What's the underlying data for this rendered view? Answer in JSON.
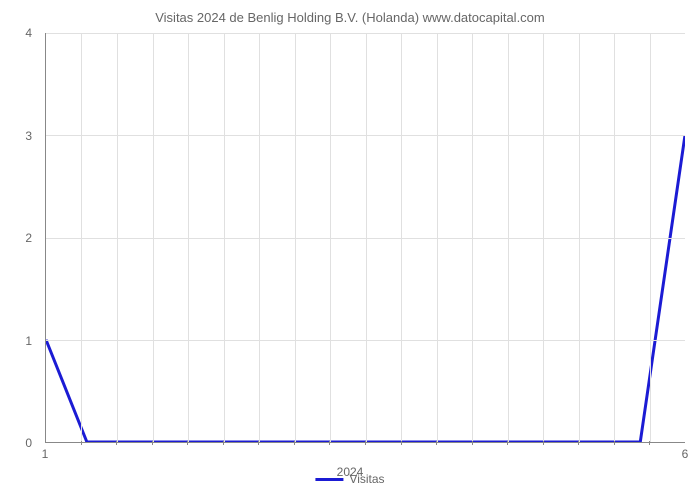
{
  "chart": {
    "type": "line",
    "title": "Visitas 2024 de Benlig Holding B.V. (Holanda) www.datocapital.com",
    "title_fontsize": 13,
    "title_color": "#666666",
    "background_color": "#ffffff",
    "grid_color": "#e0e0e0",
    "axis_color": "#888888",
    "tick_color": "#666666",
    "tick_fontsize": 12,
    "ylim": [
      0,
      4
    ],
    "yticks": [
      0,
      1,
      2,
      3,
      4
    ],
    "xlim": [
      1,
      6
    ],
    "x_end_labels": [
      "1",
      "6"
    ],
    "x_center_label": "2024",
    "x_minor_tick_count": 17,
    "grid_v_count": 17,
    "series": {
      "label": "Visitas",
      "color": "#1b1bd4",
      "line_width": 3,
      "points": [
        {
          "x": 1.0,
          "y": 1.0
        },
        {
          "x": 1.32,
          "y": 0.0
        },
        {
          "x": 5.65,
          "y": 0.0
        },
        {
          "x": 6.0,
          "y": 3.0
        }
      ]
    }
  }
}
